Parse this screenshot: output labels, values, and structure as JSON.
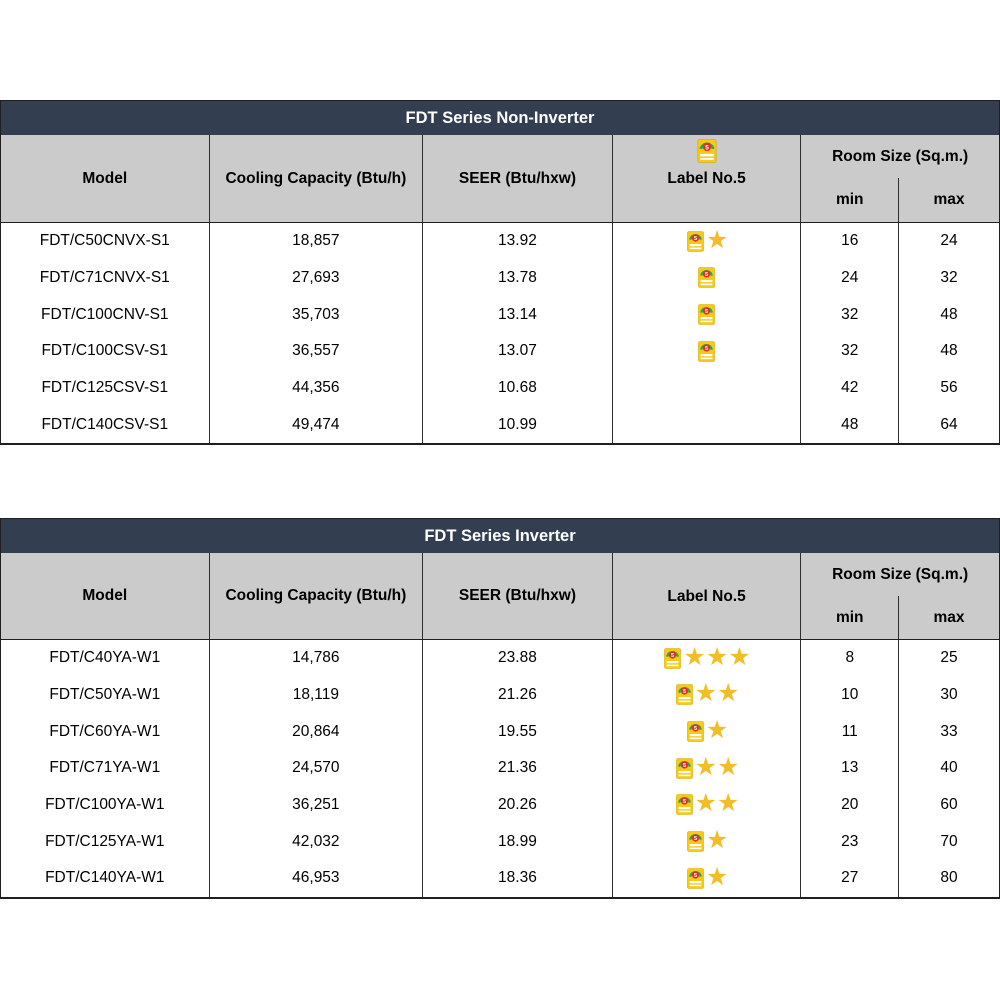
{
  "colors": {
    "title_bar_bg": "#333F50",
    "title_text": "#FFFFFF",
    "header_bg": "#CBCBCB",
    "body_text": "#000000",
    "border": "#1F1F1F",
    "star_gold": "#F2BE27",
    "label_yellow": "#F6CA15",
    "label_red": "#DD3327",
    "label_green": "#2F9E5F"
  },
  "icons": {
    "star_glyph": "★",
    "energy_label": "energy-label-no5",
    "energy_label_number": "5"
  },
  "tables": [
    {
      "title": "FDT Series Non-Inverter",
      "header_label_icon": true,
      "columns": {
        "model": "Model",
        "cooling_capacity": "Cooling Capacity (Btu/h)",
        "seer": "SEER (Btu/hxw)",
        "label_no5": "Label No.5",
        "room_size": "Room Size (Sq.m.)",
        "min": "min",
        "max": "max"
      },
      "rows": [
        {
          "model": "FDT/C50CNVX-S1",
          "cooling_capacity": "18,857",
          "seer": "13.92",
          "has_label": true,
          "stars": 1,
          "room_min": "16",
          "room_max": "24"
        },
        {
          "model": "FDT/C71CNVX-S1",
          "cooling_capacity": "27,693",
          "seer": "13.78",
          "has_label": true,
          "stars": 0,
          "room_min": "24",
          "room_max": "32"
        },
        {
          "model": "FDT/C100CNV-S1",
          "cooling_capacity": "35,703",
          "seer": "13.14",
          "has_label": true,
          "stars": 0,
          "room_min": "32",
          "room_max": "48"
        },
        {
          "model": "FDT/C100CSV-S1",
          "cooling_capacity": "36,557",
          "seer": "13.07",
          "has_label": true,
          "stars": 0,
          "room_min": "32",
          "room_max": "48"
        },
        {
          "model": "FDT/C125CSV-S1",
          "cooling_capacity": "44,356",
          "seer": "10.68",
          "has_label": false,
          "stars": 0,
          "room_min": "42",
          "room_max": "56"
        },
        {
          "model": "FDT/C140CSV-S1",
          "cooling_capacity": "49,474",
          "seer": "10.99",
          "has_label": false,
          "stars": 0,
          "room_min": "48",
          "room_max": "64"
        }
      ]
    },
    {
      "title": "FDT Series Inverter",
      "header_label_icon": false,
      "columns": {
        "model": "Model",
        "cooling_capacity": "Cooling Capacity (Btu/h)",
        "seer": "SEER (Btu/hxw)",
        "label_no5": "Label No.5",
        "room_size": "Room Size (Sq.m.)",
        "min": "min",
        "max": "max"
      },
      "rows": [
        {
          "model": "FDT/C40YA-W1",
          "cooling_capacity": "14,786",
          "seer": "23.88",
          "has_label": true,
          "stars": 3,
          "room_min": "8",
          "room_max": "25"
        },
        {
          "model": "FDT/C50YA-W1",
          "cooling_capacity": "18,119",
          "seer": "21.26",
          "has_label": true,
          "stars": 2,
          "room_min": "10",
          "room_max": "30"
        },
        {
          "model": "FDT/C60YA-W1",
          "cooling_capacity": "20,864",
          "seer": "19.55",
          "has_label": true,
          "stars": 1,
          "room_min": "11",
          "room_max": "33"
        },
        {
          "model": "FDT/C71YA-W1",
          "cooling_capacity": "24,570",
          "seer": "21.36",
          "has_label": true,
          "stars": 2,
          "room_min": "13",
          "room_max": "40"
        },
        {
          "model": "FDT/C100YA-W1",
          "cooling_capacity": "36,251",
          "seer": "20.26",
          "has_label": true,
          "stars": 2,
          "room_min": "20",
          "room_max": "60"
        },
        {
          "model": "FDT/C125YA-W1",
          "cooling_capacity": "42,032",
          "seer": "18.99",
          "has_label": true,
          "stars": 1,
          "room_min": "23",
          "room_max": "70"
        },
        {
          "model": "FDT/C140YA-W1",
          "cooling_capacity": "46,953",
          "seer": "18.36",
          "has_label": true,
          "stars": 1,
          "room_min": "27",
          "room_max": "80"
        }
      ]
    }
  ]
}
